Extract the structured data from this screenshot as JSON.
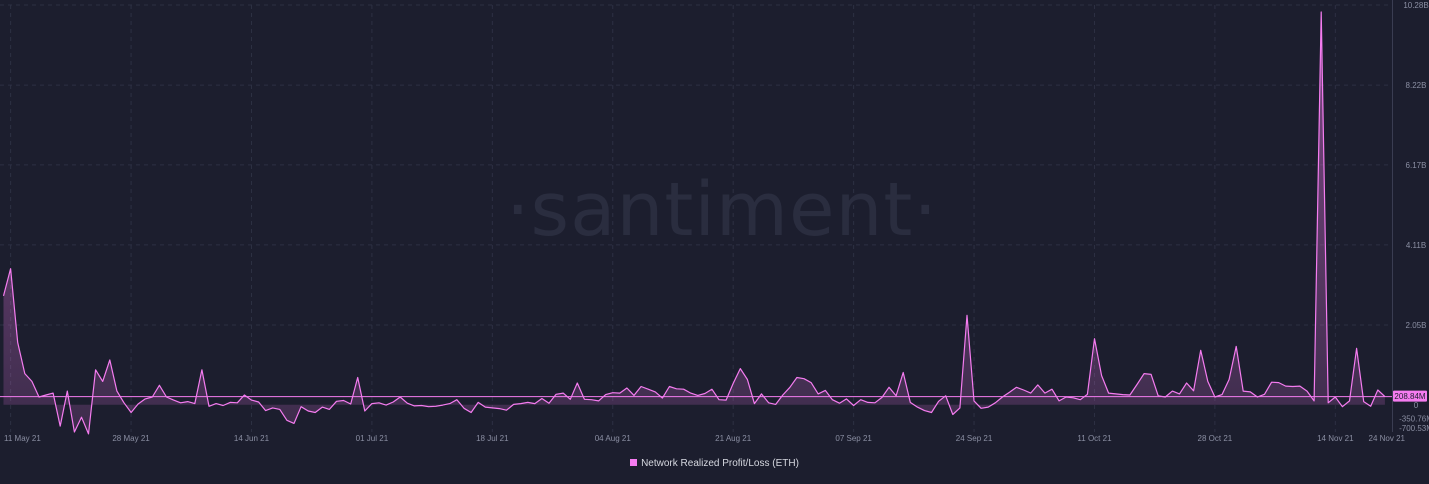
{
  "watermark": "·santiment·",
  "colors": {
    "background": "#1c1e2e",
    "series": "#f57cf0",
    "grid": "#2d3043",
    "badge_text": "#1c1e2e"
  },
  "chart_data": {
    "type": "area",
    "title": "",
    "xlabel": "",
    "ylabel": "",
    "legend": {
      "position": "bottom-center",
      "entries": [
        "Network Realized Profit/Loss (ETH)"
      ]
    },
    "grid": true,
    "ylim": [
      -700530000,
      10280000000
    ],
    "y_tick_labels": [
      "10.28B",
      "8.22B",
      "6.17B",
      "4.11B",
      "2.05B",
      "0",
      "-350.76M",
      "-700.53M"
    ],
    "y_tick_values": [
      10280000000,
      8220000000,
      6170000000,
      4110000000,
      2050000000,
      0,
      -350760000,
      -700530000
    ],
    "x_tick_labels": [
      "11 May 21",
      "28 May 21",
      "14 Jun 21",
      "01 Jul 21",
      "18 Jul 21",
      "04 Aug 21",
      "21 Aug 21",
      "07 Sep 21",
      "24 Sep 21",
      "11 Oct 21",
      "28 Oct 21",
      "14 Nov 21",
      "24 Nov 21"
    ],
    "x_tick_dates": [
      "2021-05-11",
      "2021-05-28",
      "2021-06-14",
      "2021-07-01",
      "2021-07-18",
      "2021-08-04",
      "2021-08-21",
      "2021-09-07",
      "2021-09-24",
      "2021-10-11",
      "2021-10-28",
      "2021-11-14",
      "2021-11-24"
    ],
    "current_value_label": "208.84M",
    "series": [
      {
        "name": "Network Realized Profit/Loss (ETH)",
        "color": "#f57cf0",
        "points": [
          [
            "2021-05-10",
            2800000000
          ],
          [
            "2021-05-11",
            3500000000
          ],
          [
            "2021-05-12",
            1600000000
          ],
          [
            "2021-05-13",
            800000000
          ],
          [
            "2021-05-14",
            600000000
          ],
          [
            "2021-05-15",
            200000000
          ],
          [
            "2021-05-16",
            250000000
          ],
          [
            "2021-05-17",
            300000000
          ],
          [
            "2021-05-18",
            -550000000
          ],
          [
            "2021-05-19",
            350000000
          ],
          [
            "2021-05-20",
            -700000000
          ],
          [
            "2021-05-21",
            -320000000
          ],
          [
            "2021-05-22",
            -750000000
          ],
          [
            "2021-05-23",
            900000000
          ],
          [
            "2021-05-24",
            600000000
          ],
          [
            "2021-05-25",
            1150000000
          ],
          [
            "2021-05-26",
            350000000
          ],
          [
            "2021-05-27",
            50000000
          ],
          [
            "2021-05-28",
            -200000000
          ],
          [
            "2021-05-29",
            20000000
          ],
          [
            "2021-05-30",
            150000000
          ],
          [
            "2021-05-31",
            200000000
          ],
          [
            "2021-06-01",
            500000000
          ],
          [
            "2021-06-02",
            200000000
          ],
          [
            "2021-06-03",
            120000000
          ],
          [
            "2021-06-04",
            50000000
          ],
          [
            "2021-06-05",
            80000000
          ],
          [
            "2021-06-06",
            30000000
          ],
          [
            "2021-06-07",
            900000000
          ],
          [
            "2021-06-08",
            -40000000
          ],
          [
            "2021-06-09",
            30000000
          ],
          [
            "2021-06-10",
            -20000000
          ],
          [
            "2021-06-11",
            60000000
          ],
          [
            "2021-06-12",
            50000000
          ],
          [
            "2021-06-13",
            250000000
          ],
          [
            "2021-06-14",
            120000000
          ],
          [
            "2021-06-15",
            70000000
          ],
          [
            "2021-06-16",
            -150000000
          ],
          [
            "2021-06-17",
            -80000000
          ],
          [
            "2021-06-18",
            -120000000
          ],
          [
            "2021-06-19",
            -400000000
          ],
          [
            "2021-06-20",
            -480000000
          ],
          [
            "2021-06-21",
            -50000000
          ],
          [
            "2021-06-22",
            -160000000
          ],
          [
            "2021-06-23",
            -200000000
          ],
          [
            "2021-06-24",
            -60000000
          ],
          [
            "2021-06-25",
            -120000000
          ],
          [
            "2021-06-26",
            90000000
          ],
          [
            "2021-06-27",
            110000000
          ],
          [
            "2021-06-28",
            20000000
          ],
          [
            "2021-06-29",
            700000000
          ],
          [
            "2021-06-30",
            -160000000
          ],
          [
            "2021-07-01",
            30000000
          ],
          [
            "2021-07-02",
            50000000
          ],
          [
            "2021-07-03",
            -10000000
          ],
          [
            "2021-07-04",
            70000000
          ],
          [
            "2021-07-05",
            200000000
          ],
          [
            "2021-07-06",
            40000000
          ],
          [
            "2021-07-07",
            -30000000
          ],
          [
            "2021-07-08",
            -20000000
          ],
          [
            "2021-07-09",
            -50000000
          ],
          [
            "2021-07-10",
            -40000000
          ],
          [
            "2021-07-11",
            -10000000
          ],
          [
            "2021-07-12",
            30000000
          ],
          [
            "2021-07-13",
            130000000
          ],
          [
            "2021-07-14",
            -90000000
          ],
          [
            "2021-07-15",
            -200000000
          ],
          [
            "2021-07-16",
            60000000
          ],
          [
            "2021-07-17",
            -60000000
          ],
          [
            "2021-07-18",
            -80000000
          ],
          [
            "2021-07-19",
            -100000000
          ],
          [
            "2021-07-20",
            -140000000
          ],
          [
            "2021-07-21",
            10000000
          ],
          [
            "2021-07-22",
            30000000
          ],
          [
            "2021-07-23",
            60000000
          ],
          [
            "2021-07-24",
            30000000
          ],
          [
            "2021-07-25",
            160000000
          ],
          [
            "2021-07-26",
            40000000
          ],
          [
            "2021-07-27",
            270000000
          ],
          [
            "2021-07-28",
            300000000
          ],
          [
            "2021-07-29",
            140000000
          ],
          [
            "2021-07-30",
            560000000
          ],
          [
            "2021-07-31",
            140000000
          ],
          [
            "2021-08-01",
            130000000
          ],
          [
            "2021-08-02",
            100000000
          ],
          [
            "2021-08-03",
            260000000
          ],
          [
            "2021-08-04",
            310000000
          ],
          [
            "2021-08-05",
            300000000
          ],
          [
            "2021-08-06",
            430000000
          ],
          [
            "2021-08-07",
            240000000
          ],
          [
            "2021-08-08",
            470000000
          ],
          [
            "2021-08-09",
            400000000
          ],
          [
            "2021-08-10",
            330000000
          ],
          [
            "2021-08-11",
            170000000
          ],
          [
            "2021-08-12",
            470000000
          ],
          [
            "2021-08-13",
            410000000
          ],
          [
            "2021-08-14",
            400000000
          ],
          [
            "2021-08-15",
            300000000
          ],
          [
            "2021-08-16",
            240000000
          ],
          [
            "2021-08-17",
            290000000
          ],
          [
            "2021-08-18",
            400000000
          ],
          [
            "2021-08-19",
            130000000
          ],
          [
            "2021-08-20",
            120000000
          ],
          [
            "2021-08-21",
            550000000
          ],
          [
            "2021-08-22",
            930000000
          ],
          [
            "2021-08-23",
            650000000
          ],
          [
            "2021-08-24",
            30000000
          ],
          [
            "2021-08-25",
            280000000
          ],
          [
            "2021-08-26",
            50000000
          ],
          [
            "2021-08-27",
            10000000
          ],
          [
            "2021-08-28",
            250000000
          ],
          [
            "2021-08-29",
            450000000
          ],
          [
            "2021-08-30",
            700000000
          ],
          [
            "2021-08-31",
            670000000
          ],
          [
            "2021-09-01",
            570000000
          ],
          [
            "2021-09-02",
            280000000
          ],
          [
            "2021-09-03",
            370000000
          ],
          [
            "2021-09-04",
            130000000
          ],
          [
            "2021-09-05",
            40000000
          ],
          [
            "2021-09-06",
            150000000
          ],
          [
            "2021-09-07",
            -20000000
          ],
          [
            "2021-09-08",
            130000000
          ],
          [
            "2021-09-09",
            60000000
          ],
          [
            "2021-09-10",
            50000000
          ],
          [
            "2021-09-11",
            190000000
          ],
          [
            "2021-09-12",
            450000000
          ],
          [
            "2021-09-13",
            230000000
          ],
          [
            "2021-09-14",
            830000000
          ],
          [
            "2021-09-15",
            60000000
          ],
          [
            "2021-09-16",
            -60000000
          ],
          [
            "2021-09-17",
            -150000000
          ],
          [
            "2021-09-18",
            -200000000
          ],
          [
            "2021-09-19",
            90000000
          ],
          [
            "2021-09-20",
            230000000
          ],
          [
            "2021-09-21",
            -250000000
          ],
          [
            "2021-09-22",
            -80000000
          ],
          [
            "2021-09-23",
            2300000000
          ],
          [
            "2021-09-24",
            100000000
          ],
          [
            "2021-09-25",
            -90000000
          ],
          [
            "2021-09-26",
            -60000000
          ],
          [
            "2021-09-27",
            50000000
          ],
          [
            "2021-09-28",
            200000000
          ],
          [
            "2021-09-29",
            320000000
          ],
          [
            "2021-09-30",
            450000000
          ],
          [
            "2021-10-01",
            380000000
          ],
          [
            "2021-10-02",
            300000000
          ],
          [
            "2021-10-03",
            510000000
          ],
          [
            "2021-10-04",
            300000000
          ],
          [
            "2021-10-05",
            400000000
          ],
          [
            "2021-10-06",
            100000000
          ],
          [
            "2021-10-07",
            200000000
          ],
          [
            "2021-10-08",
            180000000
          ],
          [
            "2021-10-09",
            130000000
          ],
          [
            "2021-10-10",
            270000000
          ],
          [
            "2021-10-11",
            1700000000
          ],
          [
            "2021-10-12",
            750000000
          ],
          [
            "2021-10-13",
            300000000
          ],
          [
            "2021-10-14",
            280000000
          ],
          [
            "2021-10-15",
            260000000
          ],
          [
            "2021-10-16",
            250000000
          ],
          [
            "2021-10-17",
            520000000
          ],
          [
            "2021-10-18",
            800000000
          ],
          [
            "2021-10-19",
            780000000
          ],
          [
            "2021-10-20",
            230000000
          ],
          [
            "2021-10-21",
            200000000
          ],
          [
            "2021-10-22",
            350000000
          ],
          [
            "2021-10-23",
            280000000
          ],
          [
            "2021-10-24",
            560000000
          ],
          [
            "2021-10-25",
            360000000
          ],
          [
            "2021-10-26",
            1400000000
          ],
          [
            "2021-10-27",
            600000000
          ],
          [
            "2021-10-28",
            200000000
          ],
          [
            "2021-10-29",
            260000000
          ],
          [
            "2021-10-30",
            650000000
          ],
          [
            "2021-10-31",
            1500000000
          ],
          [
            "2021-11-01",
            350000000
          ],
          [
            "2021-11-02",
            330000000
          ],
          [
            "2021-11-03",
            200000000
          ],
          [
            "2021-11-04",
            270000000
          ],
          [
            "2021-11-05",
            580000000
          ],
          [
            "2021-11-06",
            570000000
          ],
          [
            "2021-11-07",
            480000000
          ],
          [
            "2021-11-08",
            470000000
          ],
          [
            "2021-11-09",
            480000000
          ],
          [
            "2021-11-10",
            350000000
          ],
          [
            "2021-11-11",
            100000000
          ],
          [
            "2021-11-12",
            10100000000
          ],
          [
            "2021-11-13",
            50000000
          ],
          [
            "2021-11-14",
            200000000
          ],
          [
            "2021-11-15",
            -50000000
          ],
          [
            "2021-11-16",
            100000000
          ],
          [
            "2021-11-17",
            1450000000
          ],
          [
            "2021-11-18",
            80000000
          ],
          [
            "2021-11-19",
            -40000000
          ],
          [
            "2021-11-20",
            380000000
          ],
          [
            "2021-11-21",
            208840000
          ]
        ]
      }
    ]
  }
}
